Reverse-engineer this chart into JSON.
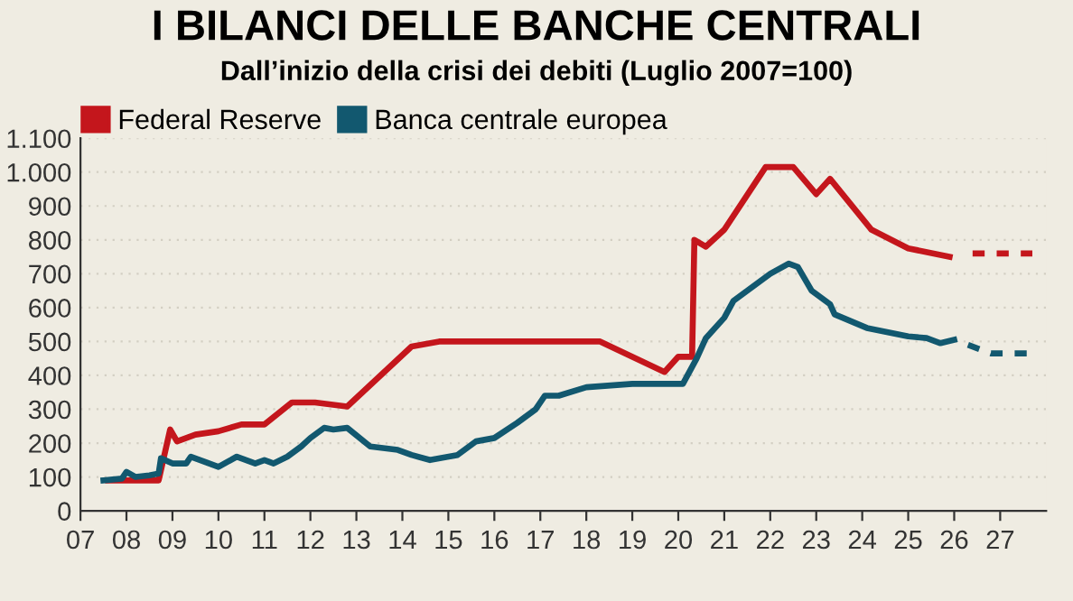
{
  "chart_data": {
    "type": "line",
    "title": "I BILANCI DELLE BANCHE CENTRALI",
    "subtitle": "Dall’inizio della crisi dei debiti (Luglio 2007=100)",
    "xlim": [
      2007,
      2028
    ],
    "ylim": [
      0,
      1100
    ],
    "xticks": [
      {
        "value": 2007,
        "label": "07"
      },
      {
        "value": 2008,
        "label": "08"
      },
      {
        "value": 2009,
        "label": "09"
      },
      {
        "value": 2010,
        "label": "10"
      },
      {
        "value": 2011,
        "label": "11"
      },
      {
        "value": 2012,
        "label": "12"
      },
      {
        "value": 2013,
        "label": "13"
      },
      {
        "value": 2014,
        "label": "14"
      },
      {
        "value": 2015,
        "label": "15"
      },
      {
        "value": 2016,
        "label": "16"
      },
      {
        "value": 2017,
        "label": "17"
      },
      {
        "value": 2018,
        "label": "18"
      },
      {
        "value": 2019,
        "label": "19"
      },
      {
        "value": 2020,
        "label": "20"
      },
      {
        "value": 2021,
        "label": "21"
      },
      {
        "value": 2022,
        "label": "22"
      },
      {
        "value": 2023,
        "label": "23"
      },
      {
        "value": 2024,
        "label": "24"
      },
      {
        "value": 2025,
        "label": "25"
      },
      {
        "value": 2026,
        "label": "26"
      },
      {
        "value": 2027,
        "label": "27"
      }
    ],
    "yticks": [
      0,
      100,
      200,
      300,
      400,
      500,
      600,
      700,
      800,
      900,
      {
        "value": 1000,
        "label": "1.000"
      },
      {
        "value": 1100,
        "label": "1.100"
      }
    ],
    "grid": "y",
    "legend": "top left",
    "line_style": "solid",
    "marker": "none",
    "series": [
      {
        "name": "Federal Reserve",
        "color": "#c4161c",
        "x": [
          2007.6,
          2008.7,
          2008.95,
          2009.1,
          2009.5,
          2010.0,
          2010.5,
          2011.0,
          2011.6,
          2012.1,
          2012.8,
          2014.2,
          2014.8,
          2018.3,
          2019.7,
          2020.0,
          2020.3,
          2020.35,
          2020.6,
          2021.0,
          2021.9,
          2022.5,
          2023.0,
          2023.3,
          2024.2,
          2025.0,
          2025.9
        ],
        "values": [
          90,
          90,
          240,
          205,
          225,
          235,
          255,
          255,
          320,
          320,
          308,
          485,
          500,
          500,
          410,
          455,
          455,
          800,
          780,
          830,
          1015,
          1015,
          935,
          980,
          830,
          775,
          750
        ]
      },
      {
        "color": "#c4161c",
        "line_style": "dashed",
        "x": [
          2026.4,
          2027.7
        ],
        "values": [
          760,
          760
        ]
      },
      {
        "name": "Banca centrale europea",
        "color": "#12586f",
        "x": [
          2007.5,
          2007.9,
          2008.0,
          2008.2,
          2008.5,
          2008.7,
          2008.75,
          2009.0,
          2009.3,
          2009.4,
          2010.0,
          2010.4,
          2010.8,
          2011.0,
          2011.2,
          2011.5,
          2011.8,
          2012.0,
          2012.3,
          2012.5,
          2012.8,
          2013.3,
          2013.9,
          2014.2,
          2014.6,
          2015.2,
          2015.6,
          2016.0,
          2016.5,
          2016.9,
          2017.1,
          2017.4,
          2018.0,
          2019.0,
          2020.1,
          2020.4,
          2020.6,
          2021.0,
          2021.2,
          2021.6,
          2022.0,
          2022.4,
          2022.6,
          2022.9,
          2023.3,
          2023.4,
          2024.1,
          2025.0,
          2025.4,
          2025.7,
          2026.0
        ],
        "values": [
          90,
          95,
          115,
          100,
          105,
          110,
          155,
          140,
          140,
          160,
          130,
          160,
          140,
          150,
          140,
          160,
          190,
          215,
          245,
          240,
          245,
          190,
          180,
          165,
          150,
          165,
          205,
          215,
          260,
          300,
          340,
          340,
          365,
          375,
          375,
          450,
          510,
          570,
          620,
          660,
          700,
          730,
          720,
          650,
          610,
          580,
          540,
          515,
          510,
          495,
          505
        ]
      },
      {
        "color": "#12586f",
        "line_style": "dashed",
        "x": [
          2026.3,
          2026.8,
          2027.7
        ],
        "values": [
          490,
          465,
          465
        ]
      }
    ]
  }
}
